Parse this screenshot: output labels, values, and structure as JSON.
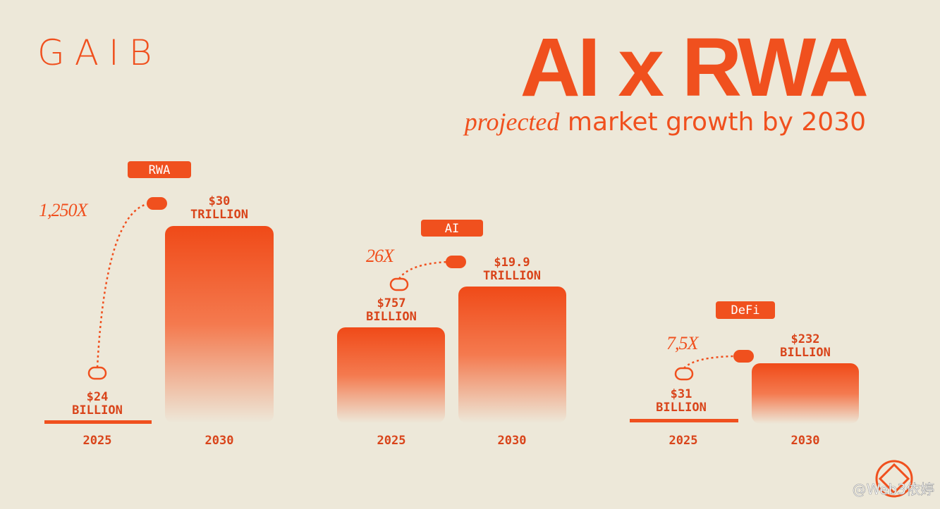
{
  "brand": "GAIB",
  "title": "AI x RWA",
  "subtitle": {
    "emphasis": "projected",
    "rest": "market growth by 2030"
  },
  "groups": [
    {
      "label": "RWA",
      "multiplier": "1,250X",
      "bars": [
        {
          "year": "2025",
          "amount": "$24",
          "unit": "BILLION"
        },
        {
          "year": "2030",
          "amount": "$30",
          "unit": "TRILLION"
        }
      ]
    },
    {
      "label": "AI",
      "multiplier": "26X",
      "bars": [
        {
          "year": "2025",
          "amount": "$757",
          "unit": "BILLION"
        },
        {
          "year": "2030",
          "amount": "$19.9",
          "unit": "TRILLION"
        }
      ]
    },
    {
      "label": "DeFi",
      "multiplier": "7,5X",
      "bars": [
        {
          "year": "2025",
          "amount": "$31",
          "unit": "BILLION"
        },
        {
          "year": "2030",
          "amount": "$232",
          "unit": "BILLION"
        }
      ]
    }
  ],
  "watermark": "@Web3依婷"
}
